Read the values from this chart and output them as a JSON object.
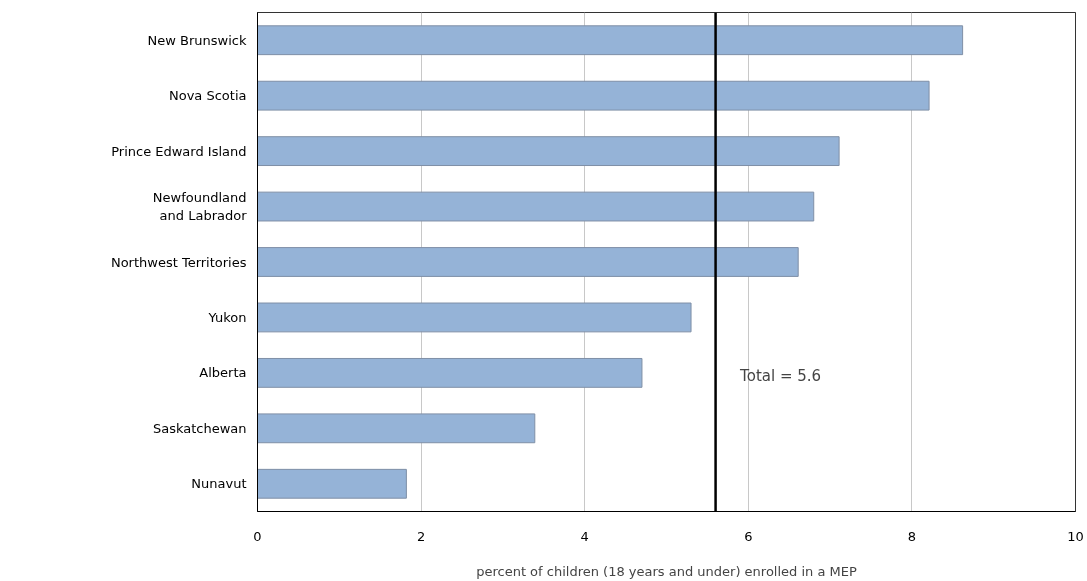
{
  "chart_data": {
    "type": "bar",
    "orientation": "horizontal",
    "categories": [
      "New Brunswick",
      "Nova Scotia",
      "Prince Edward Island",
      "Newfoundland\nand Labrador",
      "Northwest Territories",
      "Yukon",
      "Alberta",
      "Saskatchewan",
      "Nunavut"
    ],
    "values": [
      8.62,
      8.21,
      7.11,
      6.8,
      6.61,
      5.3,
      4.7,
      3.39,
      1.82
    ],
    "color": "#95b3d7",
    "xlim": [
      0,
      10
    ],
    "xticks": [
      0,
      2,
      4,
      6,
      8,
      10
    ],
    "grid": "x",
    "xlabel": "percent of children (18 years and under) enrolled in a MEP",
    "ref_lines": [
      {
        "axis": "x",
        "value": 5.6,
        "label": "Total = 5.6",
        "color": "#000000"
      }
    ]
  }
}
